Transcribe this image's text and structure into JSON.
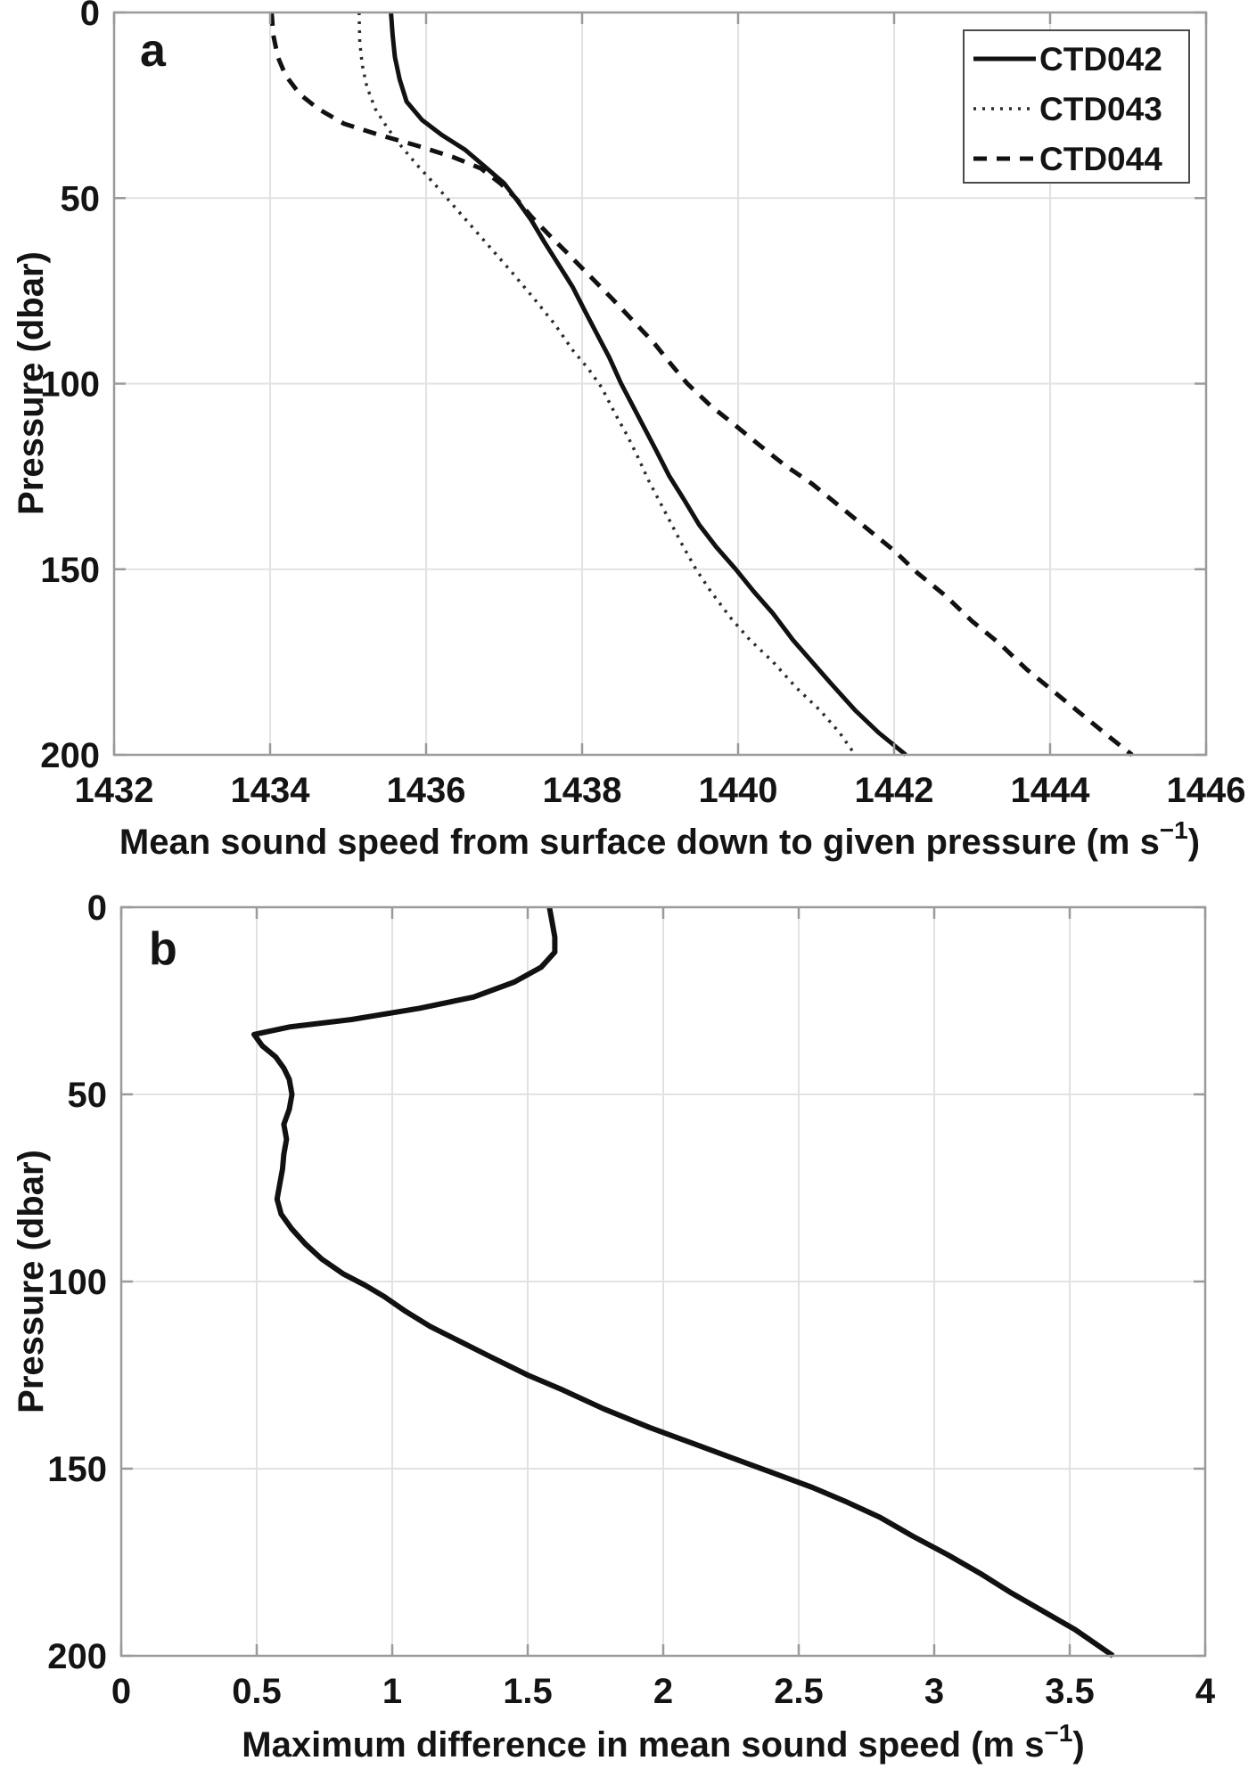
{
  "figure": {
    "background": "#ffffff",
    "axis_color": "#9a9a9a",
    "grid_color": "#e2e2e2",
    "text_color": "#141414",
    "curve_color": "#111111"
  },
  "chart_data": [
    {
      "id": "a",
      "type": "line",
      "panel_label": "a",
      "xlabel_parts": {
        "prefix": "Mean sound speed from surface down to given pressure (m s",
        "sup": "−1",
        "suffix": ")"
      },
      "ylabel": "Pressure (dbar)",
      "xlim": [
        1432,
        1446
      ],
      "ylim": [
        0,
        200
      ],
      "y_inverted": true,
      "grid": true,
      "x_ticks": [
        1432,
        1434,
        1436,
        1438,
        1440,
        1442,
        1444,
        1446
      ],
      "x_tick_labels": [
        "1432",
        "1434",
        "1436",
        "1438",
        "1440",
        "1442",
        "1444",
        "1446"
      ],
      "y_ticks": [
        0,
        50,
        100,
        150,
        200
      ],
      "y_tick_labels": [
        "0",
        "50",
        "100",
        "150",
        "200"
      ],
      "legend_position": "top-right",
      "series": [
        {
          "name": "CTD042",
          "line_style": "solid",
          "line_width": 5,
          "color": "#111111",
          "points": [
            [
              1435.55,
              0
            ],
            [
              1435.57,
              6
            ],
            [
              1435.6,
              12
            ],
            [
              1435.66,
              18
            ],
            [
              1435.75,
              24
            ],
            [
              1435.95,
              29
            ],
            [
              1436.2,
              33
            ],
            [
              1436.5,
              37
            ],
            [
              1436.78,
              42
            ],
            [
              1437.0,
              46
            ],
            [
              1437.18,
              51
            ],
            [
              1437.35,
              56
            ],
            [
              1437.52,
              62
            ],
            [
              1437.7,
              68
            ],
            [
              1437.88,
              74
            ],
            [
              1438.05,
              81
            ],
            [
              1438.2,
              87
            ],
            [
              1438.35,
              93
            ],
            [
              1438.5,
              100
            ],
            [
              1438.65,
              106
            ],
            [
              1438.8,
              112
            ],
            [
              1438.95,
              118
            ],
            [
              1439.12,
              125
            ],
            [
              1439.3,
              131
            ],
            [
              1439.5,
              138
            ],
            [
              1439.72,
              144
            ],
            [
              1439.97,
              150
            ],
            [
              1440.2,
              156
            ],
            [
              1440.45,
              162
            ],
            [
              1440.7,
              169
            ],
            [
              1440.95,
              175
            ],
            [
              1441.2,
              181
            ],
            [
              1441.5,
              188
            ],
            [
              1441.8,
              194
            ],
            [
              1442.15,
              200
            ]
          ]
        },
        {
          "name": "CTD043",
          "line_style": "dotted",
          "line_width": 3.5,
          "color": "#2b2b2b",
          "points": [
            [
              1435.14,
              0
            ],
            [
              1435.15,
              8
            ],
            [
              1435.18,
              14
            ],
            [
              1435.24,
              20
            ],
            [
              1435.35,
              26
            ],
            [
              1435.5,
              31
            ],
            [
              1435.68,
              36
            ],
            [
              1435.88,
              41
            ],
            [
              1436.1,
              46
            ],
            [
              1436.35,
              52
            ],
            [
              1436.6,
              58
            ],
            [
              1436.85,
              64
            ],
            [
              1437.1,
              70
            ],
            [
              1437.38,
              77
            ],
            [
              1437.65,
              84
            ],
            [
              1437.88,
              91
            ],
            [
              1438.08,
              96
            ],
            [
              1438.25,
              101
            ],
            [
              1438.42,
              108
            ],
            [
              1438.58,
              114
            ],
            [
              1438.72,
              120
            ],
            [
              1438.85,
              126
            ],
            [
              1439.0,
              132
            ],
            [
              1439.15,
              138
            ],
            [
              1439.3,
              144
            ],
            [
              1439.46,
              150
            ],
            [
              1439.65,
              156
            ],
            [
              1439.9,
              163
            ],
            [
              1440.15,
              169
            ],
            [
              1440.45,
              175
            ],
            [
              1440.75,
              182
            ],
            [
              1441.05,
              188
            ],
            [
              1441.3,
              194
            ],
            [
              1441.5,
              200
            ]
          ]
        },
        {
          "name": "CTD044",
          "line_style": "dashed",
          "line_width": 5,
          "color": "#111111",
          "points": [
            [
              1434.02,
              0
            ],
            [
              1434.04,
              6
            ],
            [
              1434.1,
              12
            ],
            [
              1434.2,
              17
            ],
            [
              1434.38,
              22
            ],
            [
              1434.62,
              26
            ],
            [
              1434.95,
              30
            ],
            [
              1435.4,
              33
            ],
            [
              1435.9,
              36
            ],
            [
              1436.35,
              39
            ],
            [
              1436.7,
              42
            ],
            [
              1436.95,
              46
            ],
            [
              1437.15,
              50
            ],
            [
              1437.35,
              55
            ],
            [
              1437.58,
              60
            ],
            [
              1437.82,
              65
            ],
            [
              1438.1,
              71
            ],
            [
              1438.38,
              77
            ],
            [
              1438.65,
              83
            ],
            [
              1438.92,
              89
            ],
            [
              1439.15,
              95
            ],
            [
              1439.35,
              100
            ],
            [
              1439.65,
              106
            ],
            [
              1439.95,
              111
            ],
            [
              1440.3,
              117
            ],
            [
              1440.6,
              122
            ],
            [
              1440.95,
              127
            ],
            [
              1441.3,
              133
            ],
            [
              1441.65,
              139
            ],
            [
              1442.0,
              145
            ],
            [
              1442.3,
              151
            ],
            [
              1442.65,
              157
            ],
            [
              1443.0,
              164
            ],
            [
              1443.35,
              170
            ],
            [
              1443.7,
              177
            ],
            [
              1444.05,
              183
            ],
            [
              1444.4,
              189
            ],
            [
              1444.75,
              195
            ],
            [
              1445.05,
              200
            ]
          ]
        }
      ]
    },
    {
      "id": "b",
      "type": "line",
      "panel_label": "b",
      "xlabel_parts": {
        "prefix": "Maximum difference in mean sound speed (m s",
        "sup": "−1",
        "suffix": ")"
      },
      "ylabel": "Pressure (dbar)",
      "xlim": [
        0,
        4
      ],
      "ylim": [
        0,
        200
      ],
      "y_inverted": true,
      "grid": true,
      "x_ticks": [
        0,
        0.5,
        1,
        1.5,
        2,
        2.5,
        3,
        3.5,
        4
      ],
      "x_tick_labels": [
        "0",
        "0.5",
        "1",
        "1.5",
        "2",
        "2.5",
        "3",
        "3.5",
        "4"
      ],
      "y_ticks": [
        0,
        50,
        100,
        150,
        200
      ],
      "y_tick_labels": [
        "0",
        "50",
        "100",
        "150",
        "200"
      ],
      "legend_position": "none",
      "series": [
        {
          "name": "",
          "line_style": "solid",
          "line_width": 6,
          "color": "#111111",
          "points": [
            [
              1.58,
              0
            ],
            [
              1.59,
              4
            ],
            [
              1.6,
              8
            ],
            [
              1.6,
              12
            ],
            [
              1.55,
              16
            ],
            [
              1.45,
              20
            ],
            [
              1.3,
              24
            ],
            [
              1.1,
              27
            ],
            [
              0.85,
              30
            ],
            [
              0.62,
              32
            ],
            [
              0.49,
              34
            ],
            [
              0.52,
              37
            ],
            [
              0.57,
              40
            ],
            [
              0.6,
              43
            ],
            [
              0.62,
              46
            ],
            [
              0.63,
              50
            ],
            [
              0.62,
              54
            ],
            [
              0.6,
              58
            ],
            [
              0.61,
              62
            ],
            [
              0.6,
              66
            ],
            [
              0.595,
              70
            ],
            [
              0.585,
              74
            ],
            [
              0.575,
              78
            ],
            [
              0.59,
              82
            ],
            [
              0.63,
              86
            ],
            [
              0.68,
              90
            ],
            [
              0.74,
              94
            ],
            [
              0.82,
              98
            ],
            [
              0.9,
              101
            ],
            [
              0.97,
              104
            ],
            [
              1.05,
              108
            ],
            [
              1.14,
              112
            ],
            [
              1.25,
              116
            ],
            [
              1.36,
              120
            ],
            [
              1.5,
              125
            ],
            [
              1.63,
              129
            ],
            [
              1.78,
              134
            ],
            [
              1.95,
              139
            ],
            [
              2.1,
              143
            ],
            [
              2.25,
              147
            ],
            [
              2.4,
              151
            ],
            [
              2.55,
              155
            ],
            [
              2.68,
              159
            ],
            [
              2.8,
              163
            ],
            [
              2.92,
              168
            ],
            [
              3.05,
              173
            ],
            [
              3.17,
              178
            ],
            [
              3.28,
              183
            ],
            [
              3.4,
              188
            ],
            [
              3.52,
              193
            ],
            [
              3.66,
              200
            ]
          ]
        }
      ]
    }
  ]
}
